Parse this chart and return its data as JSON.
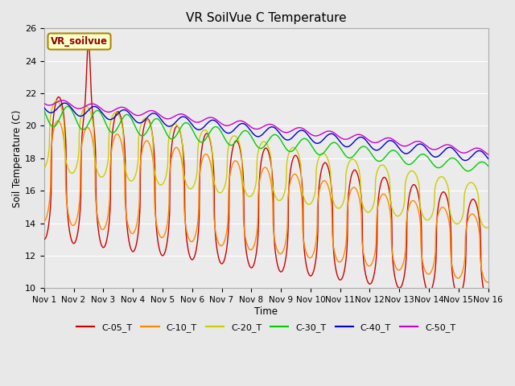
{
  "title": "VR SoilVue C Temperature",
  "xlabel": "Time",
  "ylabel": "Soil Temperature (C)",
  "ylim": [
    10,
    26
  ],
  "xlim": [
    0,
    15
  ],
  "background_color": "#e8e8e8",
  "plot_bg_color": "#ebebeb",
  "grid_color": "white",
  "series": {
    "C-05_T": {
      "color": "#cc0000",
      "linewidth": 1.0
    },
    "C-10_T": {
      "color": "#ff8800",
      "linewidth": 1.0
    },
    "C-20_T": {
      "color": "#cccc00",
      "linewidth": 1.0
    },
    "C-30_T": {
      "color": "#00cc00",
      "linewidth": 1.0
    },
    "C-40_T": {
      "color": "#0000cc",
      "linewidth": 1.0
    },
    "C-50_T": {
      "color": "#cc00cc",
      "linewidth": 1.0
    }
  },
  "xtick_labels": [
    "Nov 1",
    "Nov 2",
    "Nov 3",
    "Nov 4",
    "Nov 5",
    "Nov 6",
    "Nov 7",
    "Nov 8",
    "Nov 9",
    "Nov 10",
    "Nov 11",
    "Nov 12",
    "Nov 13",
    "Nov 14",
    "Nov 15",
    "Nov 16"
  ],
  "ytick_values": [
    10,
    12,
    14,
    16,
    18,
    20,
    22,
    24,
    26
  ],
  "annotation_text": "VR_soilvue"
}
